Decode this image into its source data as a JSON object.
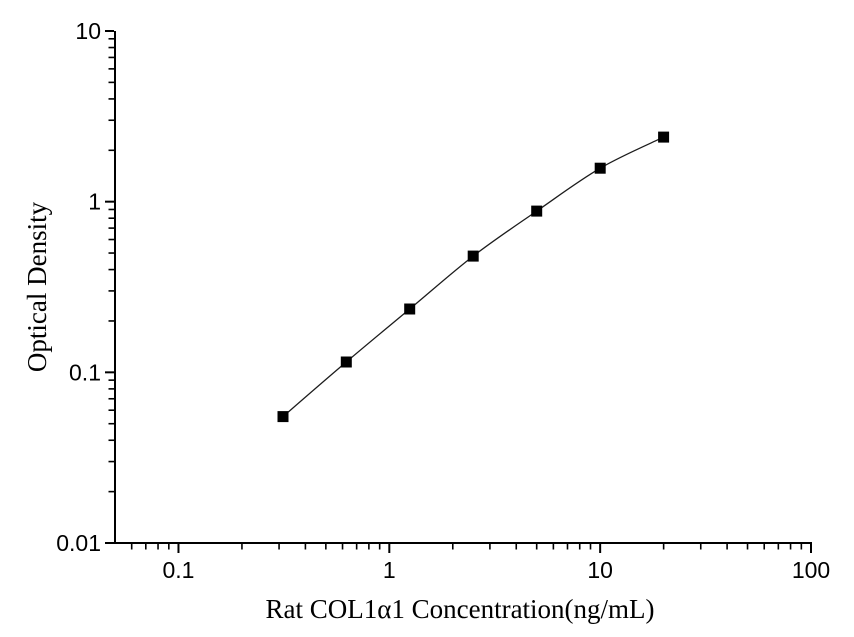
{
  "figure": {
    "background_color": "#ffffff",
    "axis_color": "#000000",
    "curve_color": "#1c1c1c",
    "marker_color": "#000000"
  },
  "chart_data": {
    "type": "scatter",
    "subtype": "elisa-standard-curve",
    "title": "",
    "xlabel": "Rat COL1α1 Concentration(ng/mL)",
    "ylabel": "Optical Density",
    "x_scale": "log",
    "y_scale": "log",
    "xlim": [
      0.05,
      100
    ],
    "ylim": [
      0.01,
      10
    ],
    "x_major_ticks": [
      0.1,
      1,
      10,
      100
    ],
    "x_tick_labels": [
      "0.1",
      "1",
      "10",
      "100"
    ],
    "y_major_ticks": [
      0.01,
      0.1,
      1,
      10
    ],
    "y_tick_labels": [
      "0.01",
      "0.1",
      "1",
      "10"
    ],
    "grid": false,
    "legend": null,
    "series": [
      {
        "name": "standard-curve",
        "marker": "filled-square",
        "line": "smooth",
        "x": [
          0.313,
          0.625,
          1.25,
          2.5,
          5,
          10,
          20
        ],
        "y": [
          0.055,
          0.115,
          0.235,
          0.48,
          0.88,
          1.57,
          2.39
        ]
      }
    ]
  }
}
